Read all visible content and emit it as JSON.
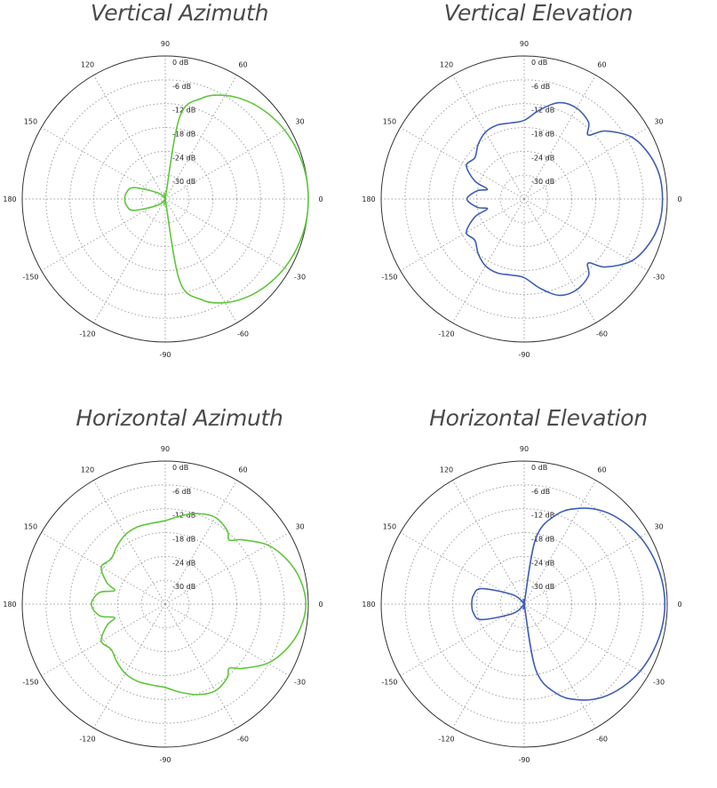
{
  "chart_data": [
    {
      "type": "polar",
      "title": "Vertical Azimuth",
      "color": "#5ec63b",
      "angle_ticks": [
        "90",
        "60",
        "30",
        "0",
        "-30",
        "-60",
        "-90",
        "-120",
        "-150",
        "180",
        "150",
        "120"
      ],
      "radial_ticks": [
        "0 dB",
        "-6 dB",
        "-12 dB",
        "-18 dB",
        "-24 dB",
        "-30 dB"
      ],
      "rlim": [
        -30,
        0
      ],
      "grid": true,
      "series": [
        {
          "angle_deg": [
            0,
            10,
            20,
            30,
            40,
            50,
            60,
            70,
            80,
            90,
            100,
            120,
            140,
            160,
            170,
            180,
            190,
            200,
            220,
            240,
            260,
            270,
            280,
            290,
            300,
            310,
            320,
            330,
            340,
            350
          ],
          "gain_db": [
            0.0,
            -0.1,
            -0.5,
            -1.1,
            -2.0,
            -3.2,
            -4.9,
            -7.5,
            -12.5,
            -30.0,
            -30.0,
            -30.0,
            -28.0,
            -23.0,
            -21.8,
            -21.5,
            -21.8,
            -23.0,
            -28.0,
            -30.0,
            -30.0,
            -30.0,
            -12.5,
            -7.5,
            -4.9,
            -3.2,
            -2.0,
            -1.1,
            -0.5,
            -0.1
          ]
        }
      ]
    },
    {
      "type": "polar",
      "title": "Vertical Elevation",
      "color": "#3e5db4",
      "angle_ticks": [
        "90",
        "60",
        "30",
        "0",
        "-30",
        "-60",
        "-90",
        "-120",
        "-150",
        "180",
        "150",
        "120"
      ],
      "radial_ticks": [
        "0 dB",
        "-6 dB",
        "-12 dB",
        "-18 dB",
        "-24 dB",
        "-30 dB"
      ],
      "rlim": [
        -30,
        0
      ],
      "grid": true,
      "series": [
        {
          "angle_deg": [
            0,
            10,
            20,
            30,
            40,
            45,
            50,
            60,
            70,
            80,
            90,
            100,
            110,
            120,
            130,
            140,
            150,
            160,
            165,
            170,
            180,
            190,
            195,
            200,
            210,
            220,
            230,
            240,
            250,
            260,
            270,
            280,
            290,
            300,
            310,
            315,
            320,
            330,
            340,
            350
          ],
          "gain_db": [
            -1.0,
            -1.2,
            -2.2,
            -4.0,
            -7.8,
            -11.0,
            -9.0,
            -8.0,
            -8.5,
            -11.0,
            -13.5,
            -13.8,
            -13.5,
            -13.8,
            -15.0,
            -16.5,
            -16.0,
            -19.0,
            -22.0,
            -20.0,
            -18.0,
            -20.0,
            -22.0,
            -19.0,
            -16.0,
            -16.5,
            -15.0,
            -13.8,
            -13.5,
            -13.8,
            -13.5,
            -11.0,
            -8.5,
            -8.0,
            -9.0,
            -11.0,
            -7.8,
            -4.0,
            -2.2,
            -1.2
          ]
        }
      ]
    },
    {
      "type": "polar",
      "title": "Horizontal Azimuth",
      "color": "#5ec63b",
      "angle_ticks": [
        "90",
        "60",
        "30",
        "0",
        "-30",
        "-60",
        "-90",
        "-120",
        "-150",
        "180",
        "150",
        "120"
      ],
      "radial_ticks": [
        "0 dB",
        "-6 dB",
        "-12 dB",
        "-18 dB",
        "-24 dB",
        "-30 dB"
      ],
      "rlim": [
        -30,
        0
      ],
      "grid": true,
      "series": [
        {
          "angle_deg": [
            0,
            10,
            20,
            30,
            40,
            45,
            50,
            60,
            70,
            80,
            90,
            100,
            110,
            120,
            130,
            140,
            150,
            160,
            165,
            170,
            180,
            190,
            195,
            200,
            210,
            220,
            230,
            240,
            250,
            260,
            270,
            280,
            290,
            300,
            310,
            315,
            320,
            330,
            340,
            350
          ],
          "gain_db": [
            -0.5,
            -1.2,
            -2.8,
            -5.2,
            -9.0,
            -11.0,
            -9.8,
            -9.0,
            -9.8,
            -11.2,
            -12.5,
            -12.8,
            -12.8,
            -13.2,
            -14.2,
            -15.2,
            -14.5,
            -17.0,
            -19.0,
            -16.0,
            -14.5,
            -16.0,
            -19.0,
            -17.0,
            -14.5,
            -15.2,
            -14.2,
            -13.2,
            -12.8,
            -12.8,
            -12.5,
            -11.2,
            -9.8,
            -9.0,
            -9.8,
            -11.0,
            -9.0,
            -5.2,
            -2.8,
            -1.2
          ]
        }
      ]
    },
    {
      "type": "polar",
      "title": "Horizontal Elevation",
      "color": "#3e5db4",
      "angle_ticks": [
        "90",
        "60",
        "30",
        "0",
        "-30",
        "-60",
        "-90",
        "-120",
        "-150",
        "180",
        "150",
        "120"
      ],
      "radial_ticks": [
        "0 dB",
        "-6 dB",
        "-12 dB",
        "-18 dB",
        "-24 dB",
        "-30 dB"
      ],
      "rlim": [
        -30,
        0
      ],
      "grid": true,
      "series": [
        {
          "angle_deg": [
            0,
            10,
            20,
            30,
            40,
            50,
            60,
            70,
            80,
            90,
            100,
            120,
            140,
            160,
            170,
            180,
            190,
            200,
            220,
            240,
            260,
            270,
            280,
            290,
            300,
            310,
            320,
            330,
            340,
            350
          ],
          "gain_db": [
            -0.5,
            -0.7,
            -1.2,
            -1.9,
            -3.0,
            -4.5,
            -6.8,
            -10.0,
            -16.0,
            -30.0,
            -30.0,
            -30.0,
            -27.0,
            -20.5,
            -19.2,
            -19.0,
            -19.2,
            -20.5,
            -27.0,
            -30.0,
            -30.0,
            -30.0,
            -16.0,
            -10.0,
            -6.8,
            -4.5,
            -3.0,
            -1.9,
            -1.2,
            -0.7
          ]
        }
      ]
    }
  ]
}
